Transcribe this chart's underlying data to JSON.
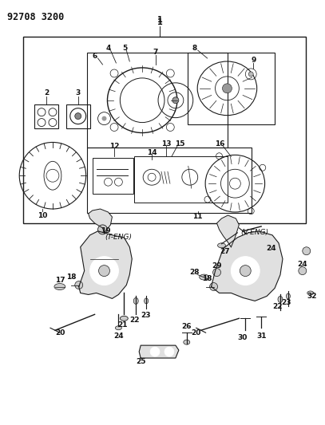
{
  "title": "92708 3200",
  "bg": "#ffffff",
  "lc": "#1a1a1a",
  "tc": "#111111",
  "fig_w": 4.07,
  "fig_h": 5.33,
  "dpi": 100
}
